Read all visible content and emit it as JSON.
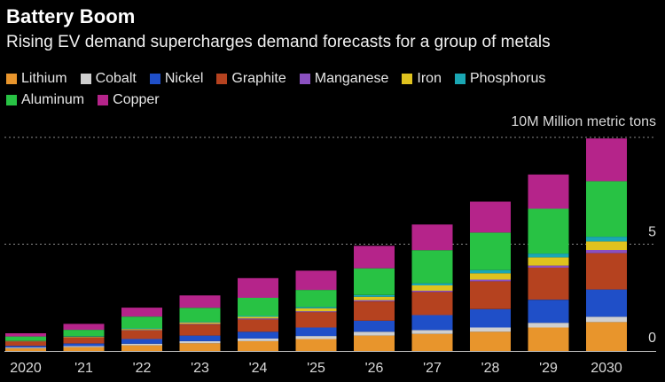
{
  "chart_data": {
    "type": "bar",
    "stacked": true,
    "title": "Battery Boom",
    "subtitle": "Rising EV demand supercharges demand forecasts for a group of metals",
    "unit_label": "10M Million metric tons",
    "y_ticks": [
      {
        "value": 0,
        "label": "0"
      },
      {
        "value": 5,
        "label": "5"
      }
    ],
    "ylim": [
      0,
      10
    ],
    "categories": [
      "2020",
      "'21",
      "'22",
      "'23",
      "'24",
      "'25",
      "'26",
      "'27",
      "'28",
      "'29",
      "2030"
    ],
    "series": [
      {
        "name": "Lithium",
        "color": "#e8952c",
        "values": [
          0.12,
          0.18,
          0.26,
          0.36,
          0.46,
          0.56,
          0.72,
          0.8,
          0.9,
          1.1,
          1.35
        ]
      },
      {
        "name": "Cobalt",
        "color": "#cfcfcf",
        "values": [
          0.04,
          0.05,
          0.08,
          0.1,
          0.12,
          0.14,
          0.18,
          0.18,
          0.2,
          0.22,
          0.25
        ]
      },
      {
        "name": "Nickel",
        "color": "#1f4fc8",
        "values": [
          0.08,
          0.12,
          0.22,
          0.26,
          0.32,
          0.4,
          0.52,
          0.7,
          0.86,
          1.08,
          1.28
        ]
      },
      {
        "name": "Graphite",
        "color": "#b5421f",
        "values": [
          0.2,
          0.28,
          0.4,
          0.52,
          0.58,
          0.72,
          0.9,
          1.08,
          1.3,
          1.5,
          1.7
        ]
      },
      {
        "name": "Manganese",
        "color": "#8a50c0",
        "values": [
          0.01,
          0.01,
          0.02,
          0.03,
          0.04,
          0.04,
          0.06,
          0.06,
          0.08,
          0.1,
          0.15
        ]
      },
      {
        "name": "Iron",
        "color": "#dfc21e",
        "values": [
          0.02,
          0.03,
          0.05,
          0.07,
          0.08,
          0.14,
          0.16,
          0.25,
          0.3,
          0.38,
          0.4
        ]
      },
      {
        "name": "Phosphorus",
        "color": "#1aa7b4",
        "values": [
          0.01,
          0.02,
          0.03,
          0.03,
          0.04,
          0.06,
          0.08,
          0.1,
          0.15,
          0.18,
          0.22
        ]
      },
      {
        "name": "Aluminum",
        "color": "#28c244",
        "values": [
          0.2,
          0.3,
          0.55,
          0.65,
          0.85,
          0.8,
          1.25,
          1.55,
          1.75,
          2.1,
          2.6
        ]
      },
      {
        "name": "Copper",
        "color": "#b5248a",
        "values": [
          0.15,
          0.28,
          0.42,
          0.58,
          0.92,
          0.9,
          1.05,
          1.2,
          1.45,
          1.6,
          2.0
        ]
      }
    ]
  }
}
